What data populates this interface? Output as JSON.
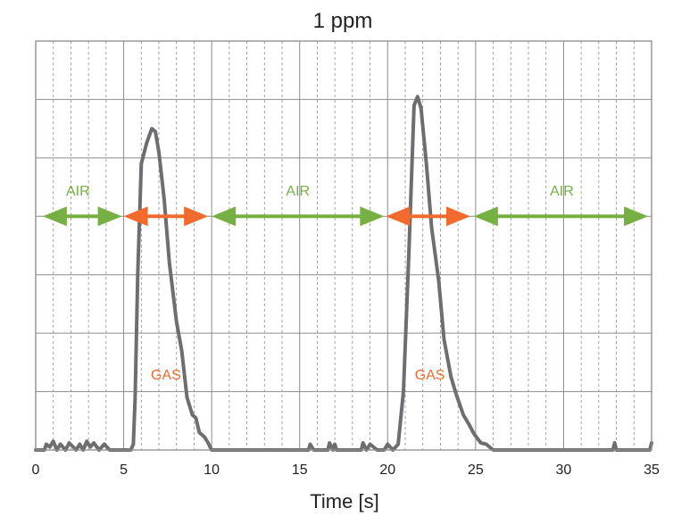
{
  "chart_data": {
    "type": "line",
    "title": "1 ppm",
    "xlabel": "Time [s]",
    "ylabel": "",
    "xlim": [
      0,
      35
    ],
    "ylim": [
      0,
      7
    ],
    "xticks": [
      0,
      5,
      10,
      15,
      20,
      25,
      30,
      35
    ],
    "xtick_labels": [
      "0",
      "5",
      "10",
      "15",
      "20",
      "25",
      "30",
      "35"
    ],
    "y_gridlines": [
      1,
      2,
      3,
      4,
      5,
      6,
      7
    ],
    "x_minor_step": 1,
    "grid": true,
    "y_tick_labels_shown": false,
    "line_color": "#6d6e71",
    "series": [
      {
        "x": [
          0,
          0.5,
          0.6,
          0.8,
          1.0,
          1.2,
          1.4,
          1.7,
          1.9,
          2.3,
          2.5,
          2.7,
          2.9,
          3.1,
          3.3,
          3.6,
          3.9,
          4.2,
          4.6,
          5.0,
          5.4,
          5.55,
          5.65,
          5.8,
          6.0,
          6.3,
          6.6,
          6.8,
          7.0,
          7.3,
          7.6,
          8.0,
          8.3,
          8.6,
          8.9,
          9.1,
          9.3,
          9.6,
          9.8,
          10.0,
          10.2,
          10.5,
          11.0,
          12.0,
          14.0,
          15.5,
          15.6,
          15.8,
          16.0,
          16.6,
          16.7,
          16.9,
          17.0,
          17.1,
          18.5,
          18.6,
          18.8,
          19.0,
          19.4,
          19.8,
          20.0,
          20.3,
          20.6,
          20.9,
          21.2,
          21.5,
          21.7,
          21.9,
          22.2,
          22.5,
          22.9,
          23.2,
          23.6,
          23.9,
          24.3,
          24.6,
          24.9,
          25.1,
          25.3,
          25.6,
          25.8,
          26.0,
          26.3,
          27.0,
          29.0,
          31.0,
          32.8,
          32.9,
          33.0,
          34.0,
          34.8,
          34.9,
          35.0
        ],
        "y": [
          0.0,
          0.0,
          0.1,
          0.05,
          0.15,
          0.0,
          0.1,
          0.0,
          0.12,
          0.0,
          0.1,
          0.0,
          0.15,
          0.05,
          0.12,
          0.0,
          0.1,
          0.0,
          0.0,
          0.0,
          0.0,
          0.1,
          0.9,
          3.0,
          4.9,
          5.25,
          5.5,
          5.45,
          5.1,
          4.3,
          3.2,
          2.2,
          1.7,
          0.9,
          0.6,
          0.55,
          0.3,
          0.22,
          0.12,
          0.0,
          0.0,
          0.0,
          0.0,
          0.0,
          0.0,
          0.0,
          0.1,
          0.0,
          0.0,
          0.0,
          0.12,
          0.0,
          0.1,
          0.0,
          0.0,
          0.12,
          0.0,
          0.1,
          0.0,
          0.0,
          0.1,
          0.0,
          0.1,
          1.0,
          3.3,
          5.9,
          6.05,
          5.85,
          4.9,
          3.8,
          2.9,
          1.9,
          1.25,
          0.95,
          0.6,
          0.45,
          0.28,
          0.2,
          0.12,
          0.1,
          0.05,
          0.0,
          0.0,
          0.0,
          0.0,
          0.0,
          0.0,
          0.12,
          0.0,
          0.0,
          0.0,
          0.0,
          0.12
        ]
      }
    ],
    "annotations": [
      {
        "label": "AIR",
        "color": "#76b043",
        "x_start": 0.4,
        "x_end": 4.9,
        "y": 4,
        "label_x": 2.4,
        "label_y": 4.45
      },
      {
        "label": "",
        "color": "#f16a2e",
        "x_start": 5.0,
        "x_end": 9.8,
        "y": 4
      },
      {
        "label": "AIR",
        "color": "#76b043",
        "x_start": 10.0,
        "x_end": 19.8,
        "y": 4,
        "label_x": 14.9,
        "label_y": 4.45
      },
      {
        "label": "",
        "color": "#f16a2e",
        "x_start": 19.9,
        "x_end": 24.7,
        "y": 4
      },
      {
        "label": "AIR",
        "color": "#76b043",
        "x_start": 24.9,
        "x_end": 34.8,
        "y": 4,
        "label_x": 29.9,
        "label_y": 4.45
      },
      {
        "label": "GAS",
        "color": "#f16a2e",
        "label_x": 7.4,
        "label_y": 1.3
      },
      {
        "label": "GAS",
        "color": "#f16a2e",
        "label_x": 22.4,
        "label_y": 1.3
      }
    ]
  }
}
